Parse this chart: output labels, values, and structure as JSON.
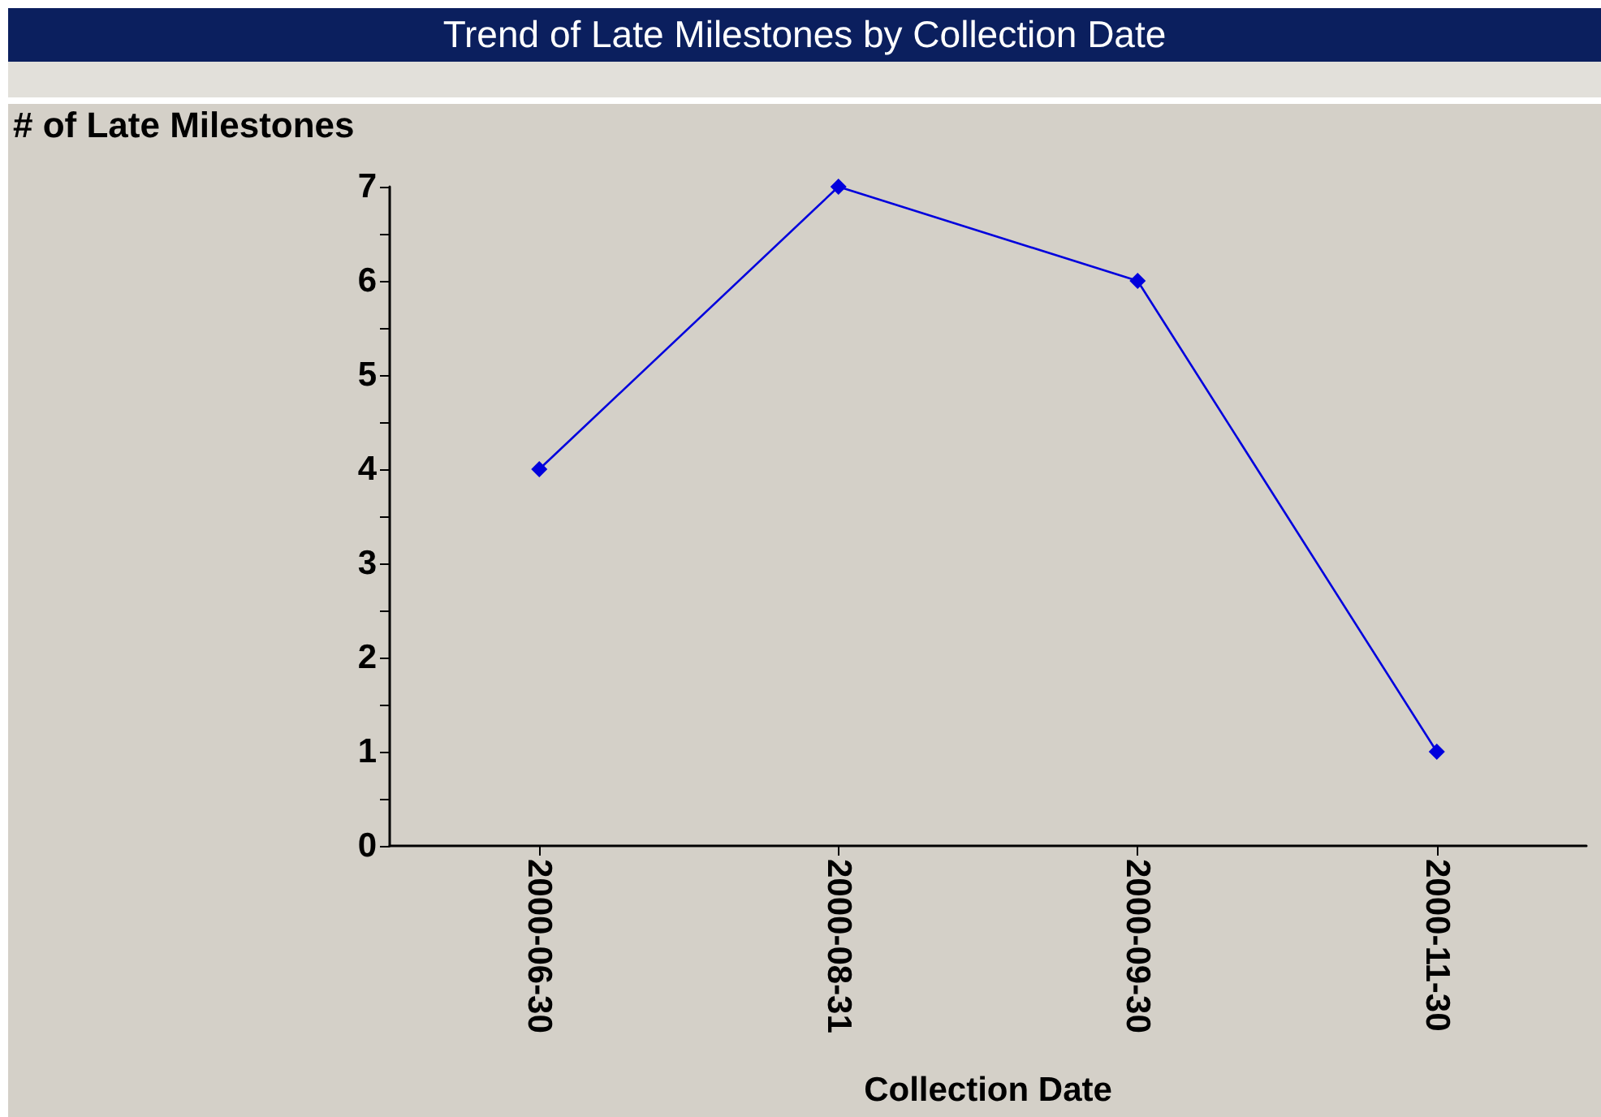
{
  "chart_data": {
    "type": "line",
    "title": "Trend of Late Milestones by Collection Date",
    "xlabel": "Collection Date",
    "ylabel": "# of Late Milestones",
    "categories": [
      "2000-06-30",
      "2000-08-31",
      "2000-09-30",
      "2000-11-30"
    ],
    "series": [
      {
        "color": "#0000dd",
        "values": [
          4,
          7,
          6,
          1
        ]
      }
    ],
    "ylim": [
      0,
      7
    ],
    "yticks": [
      0,
      {
        "value": 0.5,
        "label": null
      },
      1,
      {
        "value": 1.5,
        "label": null
      },
      2,
      {
        "value": 2.5,
        "label": null
      },
      3,
      {
        "value": 3.5,
        "label": null
      },
      4,
      {
        "value": 4.5,
        "label": null
      },
      5,
      {
        "value": 5.5,
        "label": null
      },
      6,
      {
        "value": 6.5,
        "label": null
      },
      7
    ],
    "grid": false,
    "marker": "diamond",
    "line_style": "solid"
  }
}
